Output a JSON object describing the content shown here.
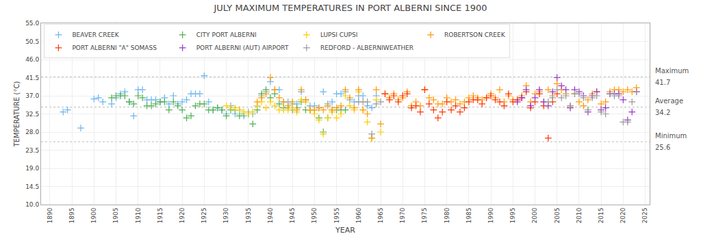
{
  "chart_data": {
    "type": "scatter",
    "title": "JULY MAXIMUM TEMPERATURES IN PORT ALBERNI SINCE 1900",
    "xlabel": "YEAR",
    "ylabel": "TEMPERATURE (°C)",
    "xlim": [
      1888,
      2026
    ],
    "ylim": [
      10.0,
      55.0
    ],
    "xticks": [
      1890,
      1895,
      1900,
      1905,
      1910,
      1915,
      1920,
      1925,
      1930,
      1935,
      1940,
      1945,
      1950,
      1955,
      1960,
      1965,
      1970,
      1975,
      1980,
      1985,
      1990,
      1995,
      2000,
      2005,
      2010,
      2015,
      2020,
      2025
    ],
    "yticks": [
      {
        "value": 10.0,
        "label": "10.0"
      },
      14.5,
      {
        "value": 19.0,
        "label": "19.0"
      },
      23.5,
      {
        "value": 28.0,
        "label": "28.0"
      },
      32.5,
      {
        "value": 37.0,
        "label": "37.0"
      },
      41.5,
      {
        "value": 46.0,
        "label": "46.0"
      },
      50.5,
      {
        "value": 55.0,
        "label": "55.0"
      }
    ],
    "grid": true,
    "legend": "upper left",
    "marker": "plus",
    "annotations": [
      {
        "text": "Maximum",
        "y": 41.7
      },
      {
        "text": "Average",
        "y": 34.2
      },
      {
        "text": "Minimum",
        "y": 25.6
      }
    ],
    "series": [
      {
        "name": "BEAVER CREEK",
        "color": "#6ab4f0",
        "x": [
          1893,
          1894,
          1897,
          1900,
          1901,
          1902,
          1904,
          1905,
          1906,
          1907,
          1908,
          1909,
          1910,
          1911,
          1912,
          1913,
          1914,
          1915,
          1916,
          1917,
          1918,
          1919,
          1920,
          1921,
          1922,
          1923,
          1924,
          1925,
          1926,
          1927,
          1928,
          1929,
          1930,
          1931,
          1932,
          1933,
          1934,
          1935,
          1936,
          1937,
          1938,
          1939,
          1940,
          1941,
          1942,
          1943,
          1944,
          1945,
          1946,
          1947,
          1948,
          1949,
          1950,
          1951,
          1952,
          1953,
          1954,
          1955,
          1956,
          1957,
          1958,
          1959,
          1960,
          1961,
          1962,
          1963,
          1964
        ],
        "values": [
          33.0,
          33.5,
          29.0,
          36.2,
          36.5,
          35.5,
          35.0,
          36.5,
          37.5,
          38.0,
          35.5,
          32.0,
          38.5,
          38.5,
          36.0,
          36.0,
          36.0,
          35.5,
          36.5,
          35.0,
          37.0,
          35.0,
          35.5,
          36.0,
          37.5,
          37.5,
          37.5,
          42.0,
          35.5,
          33.5,
          34.0,
          33.5,
          32.5,
          34.5,
          32.5,
          33.5,
          32.0,
          33.0,
          32.5,
          34.5,
          37.0,
          38.0,
          40.5,
          38.5,
          38.5,
          35.5,
          35.5,
          35.0,
          35.0,
          38.0,
          36.0,
          34.5,
          34.5,
          34.0,
          38.0,
          35.0,
          35.5,
          37.5,
          37.5,
          38.0,
          36.0,
          35.5,
          37.0,
          37.0,
          34.5,
          34.0,
          37.0
        ]
      },
      {
        "name": "CITY PORT ALBERNI",
        "color": "#4caf50",
        "x": [
          1904,
          1905,
          1906,
          1907,
          1908,
          1909,
          1910,
          1911,
          1912,
          1913,
          1914,
          1915,
          1916,
          1917,
          1918,
          1919,
          1920,
          1921,
          1922,
          1923,
          1924,
          1925,
          1926,
          1927,
          1928,
          1929,
          1930,
          1931,
          1932,
          1933,
          1934,
          1935,
          1936,
          1937,
          1938,
          1939,
          1940,
          1941,
          1942,
          1943,
          1944,
          1945,
          1946,
          1947,
          1948,
          1949,
          1950,
          1951,
          1952,
          1953,
          1954,
          1955,
          1956,
          1957
        ],
        "values": [
          36.5,
          37.0,
          37.0,
          37.0,
          35.5,
          35.0,
          37.0,
          36.5,
          34.5,
          34.5,
          35.0,
          35.5,
          35.5,
          33.5,
          35.5,
          34.5,
          33.5,
          31.5,
          32.0,
          34.5,
          35.0,
          35.0,
          33.5,
          33.5,
          34.0,
          33.5,
          32.0,
          33.5,
          33.5,
          32.0,
          32.5,
          32.5,
          30.0,
          33.5,
          37.5,
          38.5,
          36.5,
          37.5,
          35.0,
          34.0,
          34.0,
          33.5,
          34.0,
          35.5,
          33.5,
          33.5,
          33.5,
          31.5,
          28.0,
          31.5,
          33.5,
          33.5,
          33.5,
          33.5
        ]
      },
      {
        "name": "LUPSI CUPSI",
        "color": "#ffcc00",
        "x": [
          1930,
          1931,
          1932,
          1933,
          1934,
          1935,
          1936,
          1937,
          1938,
          1939,
          1940,
          1941,
          1942,
          1943,
          1944,
          1945,
          1946,
          1947,
          1948,
          1949,
          1950,
          1951,
          1952,
          1953,
          1954,
          1955,
          1956,
          1957,
          1958,
          1959,
          1960,
          1961,
          1962,
          1963,
          1964,
          1965
        ],
        "values": [
          34.5,
          34.0,
          34.0,
          33.5,
          33.0,
          32.5,
          33.0,
          34.5,
          35.5,
          34.0,
          35.5,
          34.5,
          33.5,
          33.5,
          33.5,
          34.0,
          33.0,
          36.0,
          35.5,
          33.5,
          32.5,
          31.0,
          27.5,
          31.5,
          33.0,
          31.5,
          32.5,
          37.0,
          34.5,
          33.5,
          38.0,
          33.5,
          30.5,
          26.5,
          36.0,
          28.0
        ]
      },
      {
        "name": "ROBERTSON CREEK",
        "color": "#ff9900",
        "x": [
          1937,
          1938,
          1939,
          1940,
          1941,
          1942,
          1943,
          1944,
          1945,
          1946,
          1947,
          1948,
          1949,
          1950,
          1951,
          1952,
          1953,
          1954,
          1955,
          1956,
          1957,
          1958,
          1959,
          1960,
          1961,
          1962,
          1963,
          1964,
          1965,
          1966,
          1967,
          1968,
          1969,
          1970,
          1971,
          1972,
          1973,
          1974,
          1975,
          1976,
          1977,
          1978,
          1979,
          1980,
          1981,
          1982,
          1983,
          1984,
          1985,
          1986,
          1987,
          1988,
          1989,
          1990,
          1991,
          1992,
          1993,
          1994,
          1995,
          1996,
          1997,
          1998,
          1999,
          2000,
          2001,
          2002,
          2003,
          2004,
          2005,
          2006,
          2007,
          2008,
          2009,
          2010,
          2011,
          2012,
          2013,
          2014,
          2015,
          2016,
          2017,
          2018,
          2019,
          2020,
          2021,
          2022,
          2023
        ],
        "values": [
          35.5,
          36.5,
          37.5,
          41.5,
          38.5,
          36.5,
          35.5,
          34.5,
          35.5,
          33.5,
          38.5,
          36.0,
          33.5,
          33.5,
          34.0,
          33.5,
          34.5,
          33.5,
          34.0,
          34.5,
          38.5,
          36.5,
          34.0,
          38.5,
          33.5,
          32.5,
          26.5,
          38.5,
          30.0,
          37.5,
          36.5,
          37.5,
          36.0,
          36.5,
          38.0,
          34.5,
          35.5,
          34.5,
          38.5,
          36.5,
          36.0,
          35.0,
          35.0,
          36.5,
          35.5,
          36.0,
          35.0,
          35.5,
          36.5,
          37.0,
          36.5,
          36.0,
          36.5,
          37.5,
          36.5,
          38.5,
          35.5,
          37.0,
          36.0,
          36.0,
          37.0,
          39.5,
          35.5,
          37.5,
          38.0,
          35.5,
          38.5,
          37.0,
          40.0,
          38.5,
          37.5,
          34.5,
          37.5,
          35.5,
          34.5,
          36.0,
          37.5,
          38.0,
          35.0,
          35.5,
          38.0,
          38.5,
          38.5,
          38.0,
          38.5,
          38.0,
          39.0
        ]
      },
      {
        "name": "PORT ALBERNI \"A\" SOMASS",
        "color": "#ff3300",
        "x": [
          1966,
          1967,
          1968,
          1969,
          1970,
          1971,
          1972,
          1973,
          1974,
          1975,
          1976,
          1977,
          1978,
          1979,
          1980,
          1981,
          1982,
          1983,
          1984,
          1985,
          1986,
          1987,
          1988,
          1989,
          1990,
          1991,
          1992,
          1993,
          1994,
          1995,
          1996,
          1997,
          1998,
          1999,
          2000,
          2001,
          2002,
          2003,
          2004,
          2005
        ],
        "values": [
          37.5,
          36.0,
          37.0,
          35.5,
          37.0,
          37.5,
          34.0,
          34.5,
          33.0,
          38.5,
          35.0,
          33.5,
          31.5,
          33.0,
          35.5,
          33.5,
          34.5,
          33.0,
          34.0,
          35.5,
          36.0,
          36.0,
          35.0,
          36.5,
          37.0,
          36.0,
          35.5,
          34.5,
          37.5,
          35.5,
          36.0,
          36.5,
          38.0,
          34.0,
          35.5,
          37.5,
          34.5,
          26.5,
          35.5,
          37.5
        ]
      },
      {
        "name": "PORT ALBERNI (AUT) AIRPORT",
        "color": "#9933cc",
        "x": [
          1996,
          1997,
          1998,
          1999,
          2000,
          2001,
          2002,
          2003,
          2004,
          2005,
          2006,
          2007,
          2008,
          2009,
          2010,
          2011,
          2012,
          2013,
          2014,
          2015,
          2016,
          2017,
          2018,
          2019,
          2020,
          2021,
          2022,
          2023
        ],
        "values": [
          35.5,
          36.5,
          38.5,
          34.5,
          36.5,
          38.5,
          35.5,
          34.5,
          38.0,
          41.5,
          39.5,
          38.5,
          34.0,
          38.5,
          38.0,
          37.0,
          33.0,
          37.0,
          38.0,
          33.5,
          34.0,
          37.5,
          37.5,
          37.5,
          36.0,
          31.0,
          33.0,
          38.0
        ]
      },
      {
        "name": "REDFORD - ALBERNIWEATHER",
        "color": "#999999",
        "x": [
          1960,
          1961,
          1962,
          1963,
          1964,
          1965,
          2003,
          2004,
          2005,
          2006,
          2007,
          2008,
          2009,
          2010,
          2011,
          2012,
          2013,
          2014,
          2015,
          2016,
          2017,
          2018,
          2019,
          2020,
          2021,
          2022,
          2023
        ],
        "values": [
          35.5,
          35.5,
          35.5,
          27.5,
          35.0,
          35.5,
          35.5,
          36.5,
          38.5,
          36.5,
          37.0,
          34.5,
          37.5,
          37.5,
          36.5,
          33.5,
          36.5,
          37.0,
          33.0,
          32.5,
          37.5,
          37.0,
          37.0,
          30.5,
          30.5,
          35.5,
          38.0
        ]
      }
    ]
  }
}
